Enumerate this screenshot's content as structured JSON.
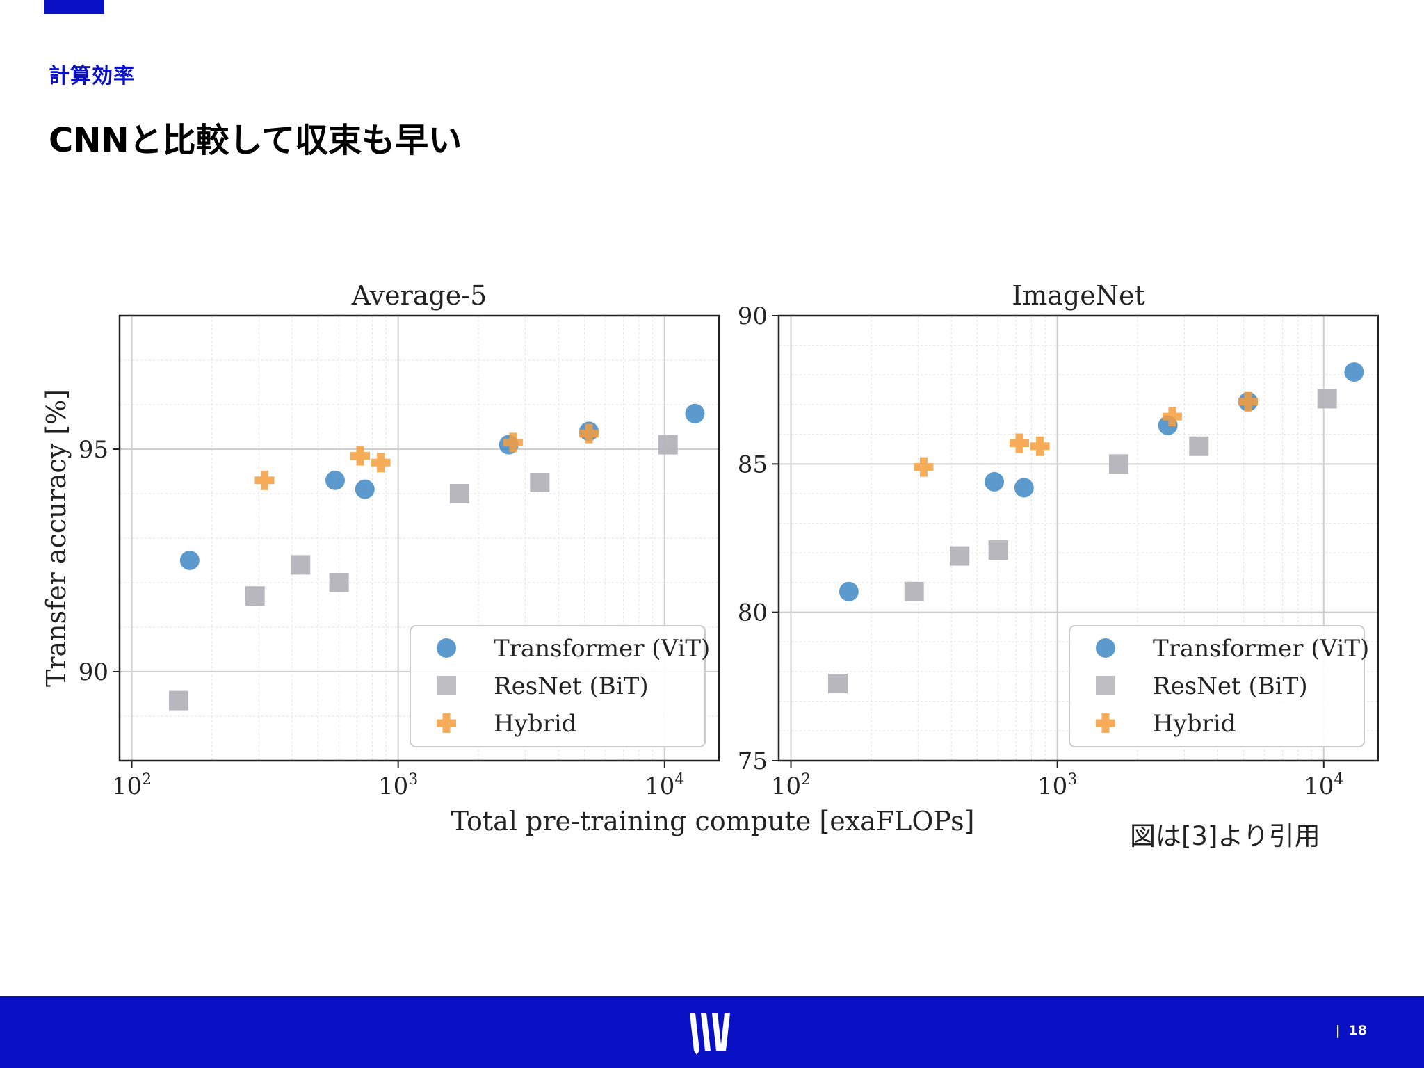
{
  "slide": {
    "section_label": "計算効率",
    "title": "CNNと比較して収束も早い",
    "caption": "図は[3]より引用",
    "page_number": "18",
    "page_separator": "|"
  },
  "colors": {
    "brand": "#0a10c4",
    "vit": "#3f88c5",
    "resnet": "#b3b3b9",
    "hybrid": "#f59d3c"
  },
  "icons": {
    "footer_logo": "brand-logo-icon"
  },
  "chart_data": [
    {
      "type": "scatter",
      "title": "Average-5",
      "xlabel": "Total pre-training compute [exaFLOPs]",
      "ylabel": "Transfer accuracy [%]",
      "xscale": "log",
      "xlim": [
        90,
        16000
      ],
      "ylim": [
        88,
        98
      ],
      "xticks": [
        {
          "value": 100,
          "base": "10",
          "exp": "2"
        },
        {
          "value": 1000,
          "base": "10",
          "exp": "3"
        },
        {
          "value": 10000,
          "base": "10",
          "exp": "4"
        }
      ],
      "yticks": [
        90,
        95
      ],
      "grid": true,
      "legend": "bottom-right",
      "series": [
        {
          "name": "Transformer (ViT)",
          "marker": "circle",
          "points": [
            [
              165,
              92.5
            ],
            [
              580,
              94.3
            ],
            [
              750,
              94.1
            ],
            [
              2600,
              95.1
            ],
            [
              5200,
              95.4
            ],
            [
              13000,
              95.8
            ]
          ]
        },
        {
          "name": "ResNet (BiT)",
          "marker": "square",
          "points": [
            [
              150,
              89.35
            ],
            [
              290,
              91.7
            ],
            [
              430,
              92.4
            ],
            [
              600,
              92.0
            ],
            [
              1700,
              94.0
            ],
            [
              3400,
              94.25
            ],
            [
              10300,
              95.1
            ]
          ]
        },
        {
          "name": "Hybrid",
          "marker": "plus",
          "points": [
            [
              315,
              94.3
            ],
            [
              720,
              94.85
            ],
            [
              860,
              94.7
            ],
            [
              2700,
              95.15
            ],
            [
              5200,
              95.35
            ]
          ]
        }
      ]
    },
    {
      "type": "scatter",
      "title": "ImageNet",
      "xlabel": "",
      "ylabel": "",
      "xscale": "log",
      "xlim": [
        90,
        16000
      ],
      "ylim": [
        75,
        90
      ],
      "xticks": [
        {
          "value": 100,
          "base": "10",
          "exp": "2"
        },
        {
          "value": 1000,
          "base": "10",
          "exp": "3"
        },
        {
          "value": 10000,
          "base": "10",
          "exp": "4"
        }
      ],
      "yticks": [
        75,
        80,
        85,
        90
      ],
      "grid": true,
      "legend": "bottom-right",
      "series": [
        {
          "name": "Transformer (ViT)",
          "marker": "circle",
          "points": [
            [
              165,
              80.7
            ],
            [
              580,
              84.4
            ],
            [
              750,
              84.2
            ],
            [
              2600,
              86.3
            ],
            [
              5200,
              87.1
            ],
            [
              13000,
              88.1
            ]
          ]
        },
        {
          "name": "ResNet (BiT)",
          "marker": "square",
          "points": [
            [
              150,
              77.6
            ],
            [
              290,
              80.7
            ],
            [
              430,
              81.9
            ],
            [
              600,
              82.1
            ],
            [
              1700,
              85.0
            ],
            [
              3400,
              85.6
            ],
            [
              10300,
              87.2
            ]
          ]
        },
        {
          "name": "Hybrid",
          "marker": "plus",
          "points": [
            [
              315,
              84.9
            ],
            [
              720,
              85.7
            ],
            [
              860,
              85.6
            ],
            [
              2700,
              86.6
            ],
            [
              5200,
              87.1
            ]
          ]
        }
      ]
    }
  ]
}
